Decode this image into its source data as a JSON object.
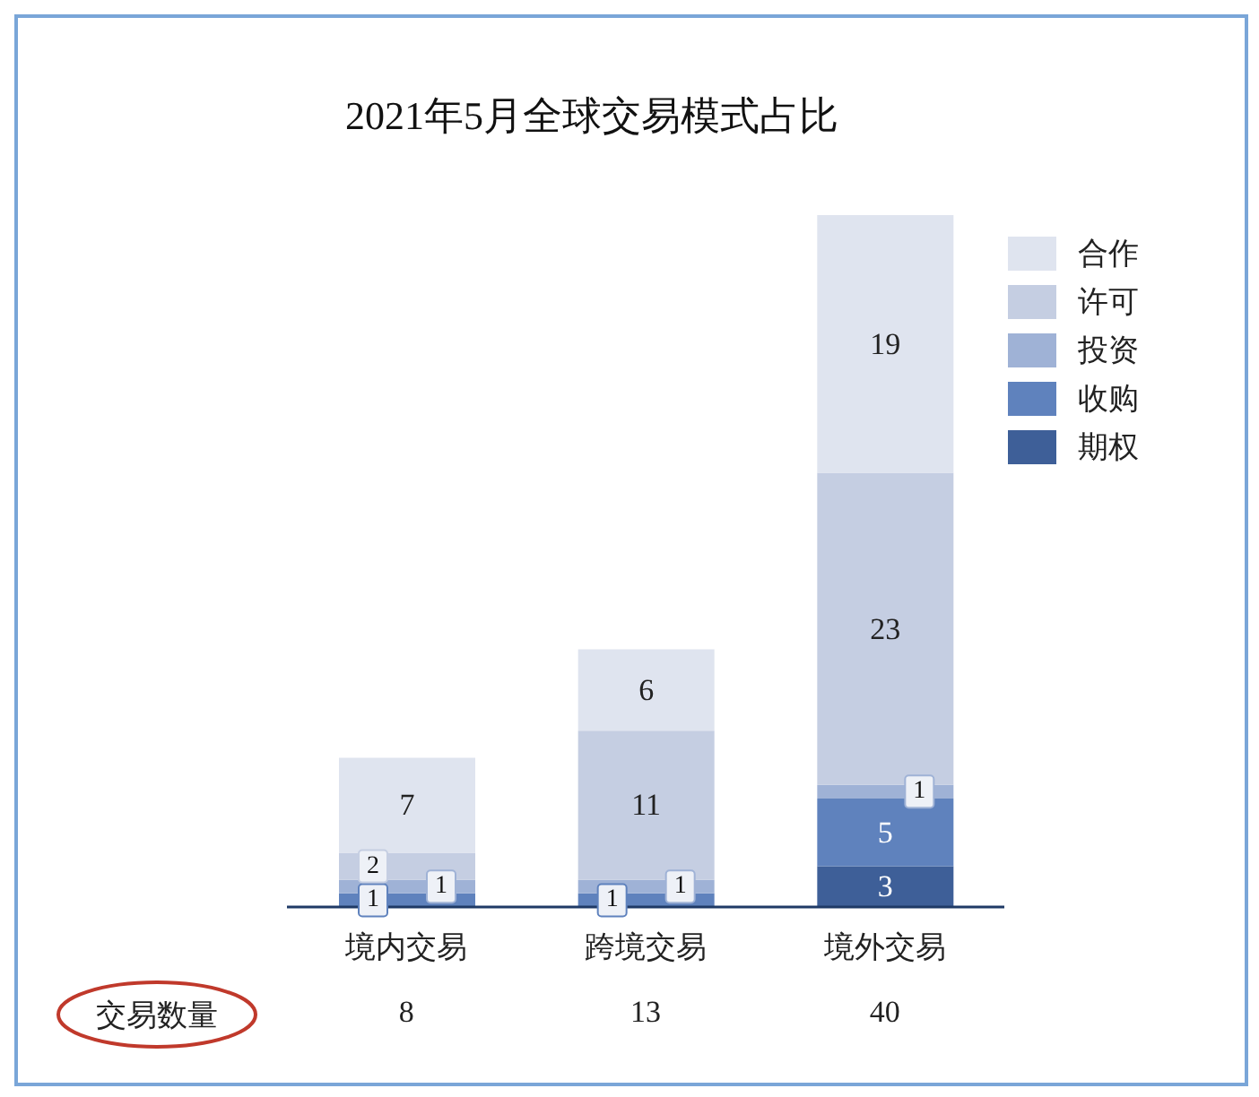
{
  "chart_data": {
    "type": "bar",
    "title": "2021年5月全球交易模式占比",
    "categories": [
      "境内交易",
      "跨境交易",
      "境外交易"
    ],
    "stacked": true,
    "series": [
      {
        "name": "期权",
        "color": "#3e5f98",
        "values": [
          null,
          null,
          3
        ]
      },
      {
        "name": "收购",
        "color": "#5f82bd",
        "values": [
          1,
          1,
          5
        ]
      },
      {
        "name": "投资",
        "color": "#9fb2d6",
        "values": [
          1,
          1,
          1
        ]
      },
      {
        "name": "许可",
        "color": "#c5cee2",
        "values": [
          2,
          11,
          23
        ]
      },
      {
        "name": "合作",
        "color": "#dfe4ef",
        "values": [
          7,
          6,
          19
        ]
      }
    ],
    "data_labels": true,
    "legend": "top right",
    "grid": false,
    "annotations": [
      "交易数量",
      "8",
      "13",
      "40"
    ]
  }
}
